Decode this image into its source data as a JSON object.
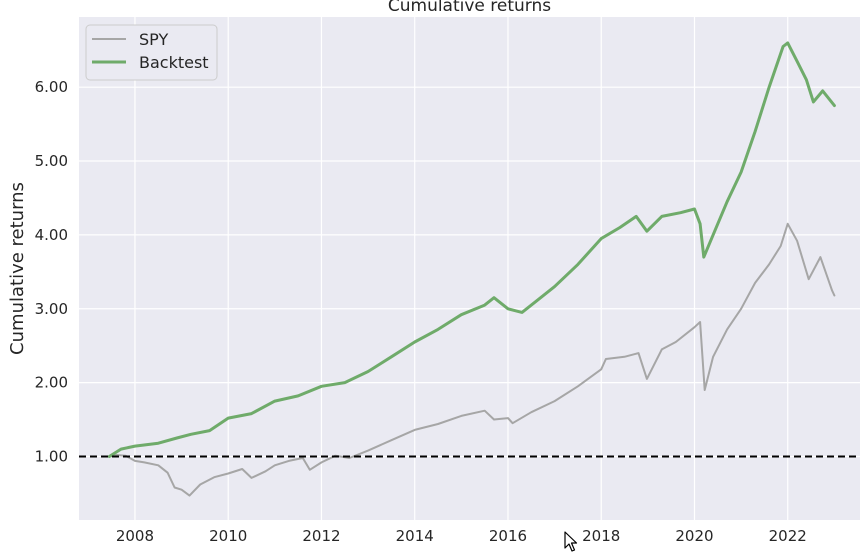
{
  "chart_data": {
    "type": "line",
    "title": "Cumulative returns",
    "ylabel": "Cumulative returns",
    "xlabel": "",
    "xlim": [
      2006.8,
      2023.55
    ],
    "ylim": [
      0.14,
      6.95
    ],
    "x_ticks": [
      2008,
      2010,
      2012,
      2014,
      2016,
      2018,
      2020,
      2022
    ],
    "x_tick_labels": [
      "2008",
      "2010",
      "2012",
      "2014",
      "2016",
      "2018",
      "2020",
      "2022"
    ],
    "y_ticks": [
      1,
      2,
      3,
      4,
      5,
      6
    ],
    "y_tick_labels": [
      "1.00",
      "2.00",
      "3.00",
      "4.00",
      "5.00",
      "6.00"
    ],
    "grid": true,
    "legend_position": "top-left",
    "reference_line": {
      "y": 1.0,
      "style": "dashed",
      "color": "#000000"
    },
    "series": [
      {
        "name": "SPY",
        "color": "#a6a6a6",
        "points": [
          [
            2007.45,
            1.0
          ],
          [
            2007.6,
            1.02
          ],
          [
            2007.8,
            1.01
          ],
          [
            2008.0,
            0.94
          ],
          [
            2008.2,
            0.92
          ],
          [
            2008.5,
            0.88
          ],
          [
            2008.7,
            0.78
          ],
          [
            2008.85,
            0.58
          ],
          [
            2009.0,
            0.55
          ],
          [
            2009.17,
            0.47
          ],
          [
            2009.4,
            0.62
          ],
          [
            2009.7,
            0.72
          ],
          [
            2010.0,
            0.77
          ],
          [
            2010.3,
            0.83
          ],
          [
            2010.5,
            0.71
          ],
          [
            2010.8,
            0.8
          ],
          [
            2011.0,
            0.88
          ],
          [
            2011.3,
            0.94
          ],
          [
            2011.6,
            0.98
          ],
          [
            2011.75,
            0.82
          ],
          [
            2012.0,
            0.92
          ],
          [
            2012.3,
            1.01
          ],
          [
            2012.6,
            0.98
          ],
          [
            2013.0,
            1.08
          ],
          [
            2013.5,
            1.22
          ],
          [
            2014.0,
            1.36
          ],
          [
            2014.5,
            1.44
          ],
          [
            2015.0,
            1.55
          ],
          [
            2015.5,
            1.62
          ],
          [
            2015.7,
            1.5
          ],
          [
            2016.0,
            1.52
          ],
          [
            2016.1,
            1.45
          ],
          [
            2016.5,
            1.6
          ],
          [
            2017.0,
            1.75
          ],
          [
            2017.5,
            1.95
          ],
          [
            2018.0,
            2.18
          ],
          [
            2018.1,
            2.32
          ],
          [
            2018.5,
            2.35
          ],
          [
            2018.8,
            2.4
          ],
          [
            2018.98,
            2.05
          ],
          [
            2019.3,
            2.45
          ],
          [
            2019.6,
            2.55
          ],
          [
            2020.0,
            2.75
          ],
          [
            2020.12,
            2.82
          ],
          [
            2020.22,
            1.9
          ],
          [
            2020.4,
            2.35
          ],
          [
            2020.7,
            2.72
          ],
          [
            2021.0,
            3.0
          ],
          [
            2021.3,
            3.35
          ],
          [
            2021.6,
            3.6
          ],
          [
            2021.85,
            3.85
          ],
          [
            2022.0,
            4.15
          ],
          [
            2022.2,
            3.92
          ],
          [
            2022.45,
            3.4
          ],
          [
            2022.7,
            3.7
          ],
          [
            2022.95,
            3.25
          ],
          [
            2023.0,
            3.18
          ]
        ]
      },
      {
        "name": "Backtest",
        "color": "#6fab6a",
        "points": [
          [
            2007.45,
            1.0
          ],
          [
            2007.7,
            1.1
          ],
          [
            2008.0,
            1.14
          ],
          [
            2008.5,
            1.18
          ],
          [
            2008.9,
            1.25
          ],
          [
            2009.2,
            1.3
          ],
          [
            2009.6,
            1.35
          ],
          [
            2010.0,
            1.52
          ],
          [
            2010.5,
            1.58
          ],
          [
            2011.0,
            1.75
          ],
          [
            2011.5,
            1.82
          ],
          [
            2012.0,
            1.95
          ],
          [
            2012.5,
            2.0
          ],
          [
            2013.0,
            2.15
          ],
          [
            2013.5,
            2.35
          ],
          [
            2014.0,
            2.55
          ],
          [
            2014.5,
            2.72
          ],
          [
            2015.0,
            2.92
          ],
          [
            2015.5,
            3.05
          ],
          [
            2015.7,
            3.15
          ],
          [
            2016.0,
            3.0
          ],
          [
            2016.3,
            2.95
          ],
          [
            2016.6,
            3.1
          ],
          [
            2017.0,
            3.3
          ],
          [
            2017.5,
            3.6
          ],
          [
            2018.0,
            3.95
          ],
          [
            2018.4,
            4.1
          ],
          [
            2018.75,
            4.25
          ],
          [
            2018.98,
            4.05
          ],
          [
            2019.3,
            4.25
          ],
          [
            2019.7,
            4.3
          ],
          [
            2020.0,
            4.35
          ],
          [
            2020.12,
            4.15
          ],
          [
            2020.2,
            3.7
          ],
          [
            2020.4,
            4.0
          ],
          [
            2020.7,
            4.45
          ],
          [
            2021.0,
            4.85
          ],
          [
            2021.3,
            5.4
          ],
          [
            2021.6,
            6.0
          ],
          [
            2021.9,
            6.55
          ],
          [
            2022.0,
            6.6
          ],
          [
            2022.2,
            6.35
          ],
          [
            2022.4,
            6.1
          ],
          [
            2022.55,
            5.8
          ],
          [
            2022.75,
            5.95
          ],
          [
            2023.0,
            5.75
          ]
        ]
      }
    ]
  }
}
